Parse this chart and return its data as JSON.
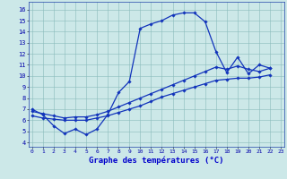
{
  "xlabel": "Graphe des températures (°C)",
  "bg_color": "#cce8e8",
  "grid_color": "#88bbbb",
  "line_color": "#1133bb",
  "xlim_min": -0.3,
  "xlim_max": 23.3,
  "ylim_min": 3.6,
  "ylim_max": 16.7,
  "xticks": [
    0,
    1,
    2,
    3,
    4,
    5,
    6,
    7,
    8,
    9,
    10,
    11,
    12,
    13,
    14,
    15,
    16,
    17,
    18,
    19,
    20,
    21,
    22,
    23
  ],
  "yticks": [
    4,
    5,
    6,
    7,
    8,
    9,
    10,
    11,
    12,
    13,
    14,
    15,
    16
  ],
  "series1_x": [
    0,
    1,
    2,
    3,
    4,
    5,
    6,
    7,
    8,
    9,
    10,
    11,
    12,
    13,
    14,
    15,
    16,
    17,
    18,
    19,
    20,
    21,
    22
  ],
  "series1_y": [
    7.0,
    6.5,
    5.5,
    4.8,
    5.2,
    4.7,
    5.2,
    6.5,
    8.5,
    9.5,
    14.3,
    14.7,
    15.0,
    15.5,
    15.7,
    15.7,
    14.9,
    12.2,
    10.3,
    11.7,
    10.2,
    11.0,
    10.7
  ],
  "series2_x": [
    0,
    1,
    2,
    3,
    4,
    5,
    6,
    7,
    8,
    9,
    10,
    11,
    12,
    13,
    14,
    15,
    16,
    17,
    18,
    19,
    20,
    21,
    22
  ],
  "series2_y": [
    6.8,
    6.6,
    6.4,
    6.2,
    6.3,
    6.3,
    6.5,
    6.8,
    7.2,
    7.6,
    8.0,
    8.4,
    8.8,
    9.2,
    9.6,
    10.0,
    10.4,
    10.8,
    10.6,
    10.9,
    10.6,
    10.4,
    10.7
  ],
  "series3_x": [
    0,
    1,
    2,
    3,
    4,
    5,
    6,
    7,
    8,
    9,
    10,
    11,
    12,
    13,
    14,
    15,
    16,
    17,
    18,
    19,
    20,
    21,
    22
  ],
  "series3_y": [
    6.4,
    6.2,
    6.1,
    6.0,
    6.0,
    6.0,
    6.2,
    6.4,
    6.7,
    7.0,
    7.3,
    7.7,
    8.1,
    8.4,
    8.7,
    9.0,
    9.3,
    9.6,
    9.7,
    9.8,
    9.8,
    9.9,
    10.1
  ]
}
